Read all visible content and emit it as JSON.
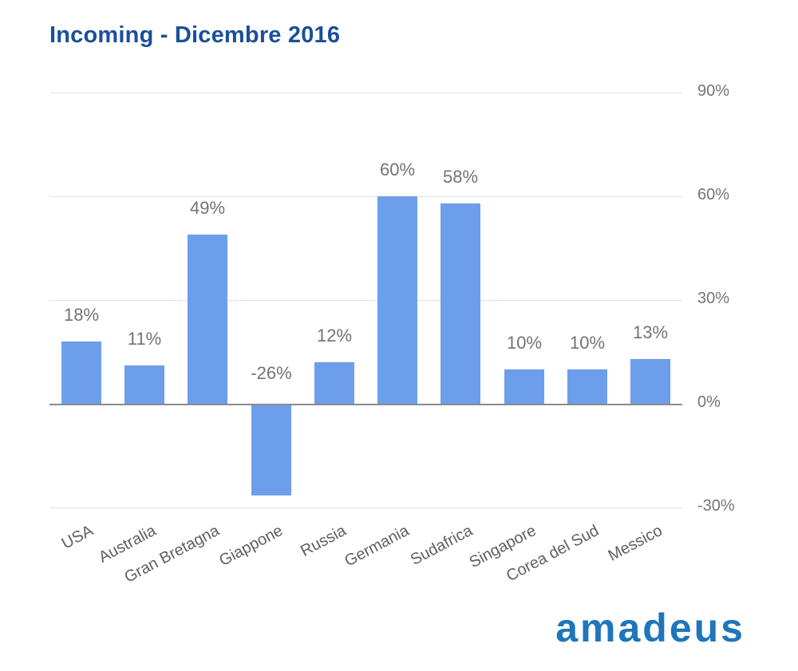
{
  "header": {
    "title": "Incoming - Dicembre 2016"
  },
  "branding": {
    "logo_text": "amadeus"
  },
  "colors": {
    "background": "#ffffff",
    "title": "#1a4f9b",
    "logo": "#1e76bb",
    "bar": "#6d9eeb",
    "grid_line": "#e0e0e0",
    "axis_line": "#8c8c8c",
    "tick_label": "#757575",
    "value_label": "#737373",
    "category_label": "#5f5f5f"
  },
  "chart_data": {
    "type": "bar",
    "title": "Incoming - Dicembre 2016",
    "categories": [
      "USA",
      "Australia",
      "Gran Bretagna",
      "Giappone",
      "Russia",
      "Germania",
      "Sudafrica",
      "Singapore",
      "Corea del Sud",
      "Messico"
    ],
    "values": [
      18,
      11,
      49,
      -26,
      12,
      60,
      58,
      10,
      10,
      13
    ],
    "data_labels": [
      "18%",
      "11%",
      "49%",
      "-26%",
      "12%",
      "60%",
      "58%",
      "10%",
      "10%",
      "13%"
    ],
    "y_ticks": [
      90,
      60,
      30,
      0,
      -30
    ],
    "y_tick_labels": [
      "90%",
      "60%",
      "30%",
      "0%",
      "-30%"
    ],
    "ylim": [
      -30,
      90
    ],
    "xlabel": "",
    "ylabel": "",
    "grid": true,
    "legend": "none",
    "y_axis_side": "right",
    "category_label_rotation_deg": -28,
    "bar_color": "#6d9eeb",
    "value_suffix": "%"
  }
}
